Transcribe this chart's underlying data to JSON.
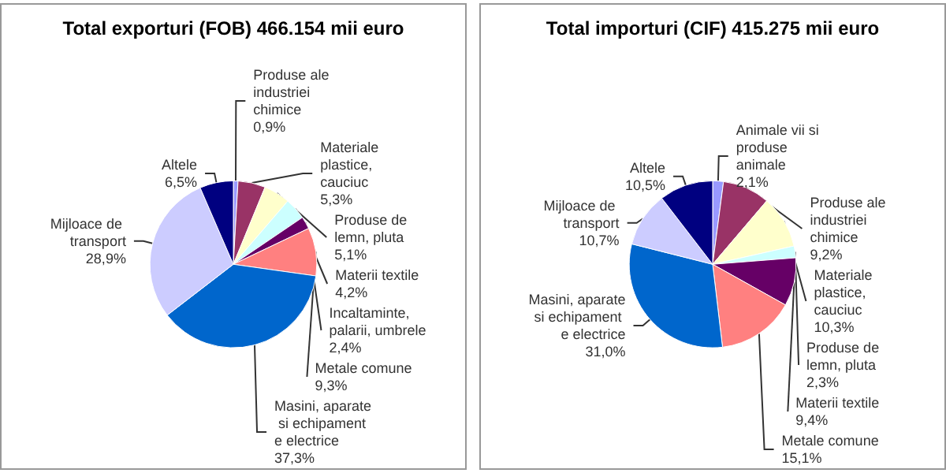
{
  "chart_data": [
    {
      "type": "pie",
      "title": "Total exporturi (FOB) 466.154 mii euro",
      "categories": [
        "Produse ale industriei chimice",
        "Materiale plastice, cauciuc",
        "Produse de lemn, pluta",
        "Materii textile",
        "Incaltaminte, palarii, umbrele",
        "Metale comune",
        "Masini, aparate si echipament e electrice",
        "Mijloace de transport",
        "Altele"
      ],
      "values": [
        0.9,
        5.3,
        5.1,
        4.2,
        2.4,
        9.3,
        37.3,
        28.9,
        6.5
      ],
      "value_labels": [
        "0,9%",
        "5,3%",
        "5,1%",
        "4,2%",
        "2,4%",
        "9,3%",
        "37,3%",
        "28,9%",
        "6,5%"
      ],
      "colors": [
        "#9999ff",
        "#993366",
        "#ffffcc",
        "#ccffff",
        "#660066",
        "#ff8080",
        "#0066cc",
        "#ccccff",
        "#000080"
      ],
      "legend": false
    },
    {
      "type": "pie",
      "title": "Total importuri (CIF) 415.275 mii euro",
      "categories": [
        "Animale vii si produse animale",
        "Produse ale industriei chimice",
        "Materiale plastice, cauciuc",
        "Produse de lemn, pluta",
        "Materii textile",
        "Metale comune",
        "Masini, aparate si echipament e electrice",
        "Mijloace de transport",
        "Altele"
      ],
      "values": [
        2.1,
        9.2,
        10.3,
        2.3,
        9.4,
        15.1,
        31.0,
        10.7,
        10.5
      ],
      "value_labels": [
        "2,1%",
        "9,2%",
        "10,3%",
        "2,3%",
        "9,4%",
        "15,1%",
        "31,0%",
        "10,7%",
        "10,5%"
      ],
      "colors": [
        "#9999ff",
        "#993366",
        "#ffffcc",
        "#ccffff",
        "#660066",
        "#ff8080",
        "#0066cc",
        "#ccccff",
        "#000080"
      ],
      "legend": false
    }
  ]
}
